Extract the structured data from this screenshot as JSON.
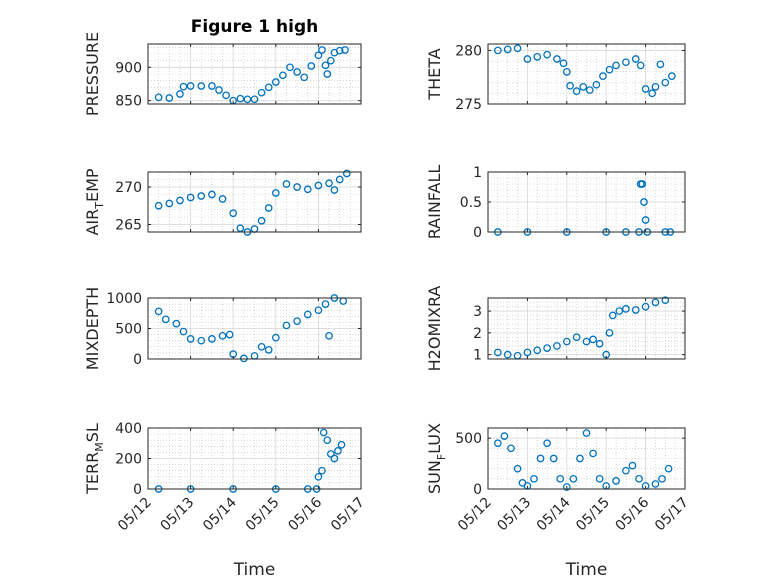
{
  "figure": {
    "title": "Figure 1 high",
    "xlabel": "Time"
  },
  "colors": {
    "marker": "#0072bd",
    "axis": "#262626",
    "grid": "#bfbfbf",
    "background": "#ffffff"
  },
  "chart_data": [
    {
      "type": "scatter",
      "title": "Figure 1 high",
      "ylabel": "PRESSURE",
      "ylim": [
        845,
        935
      ],
      "yticks": [
        850,
        900
      ],
      "xlim": [
        "05/12",
        "05/17"
      ],
      "grid": true,
      "minor_grid": true,
      "points": [
        [
          "05/12 06:00",
          855
        ],
        [
          "05/12 12:00",
          854
        ],
        [
          "05/12 18:00",
          860
        ],
        [
          "05/12 20:00",
          871
        ],
        [
          "05/13 00:00",
          872
        ],
        [
          "05/13 06:00",
          872
        ],
        [
          "05/13 12:00",
          872
        ],
        [
          "05/13 16:00",
          866
        ],
        [
          "05/13 20:00",
          858
        ],
        [
          "05/14 00:00",
          850
        ],
        [
          "05/14 04:00",
          853
        ],
        [
          "05/14 08:00",
          852
        ],
        [
          "05/14 12:00",
          852
        ],
        [
          "05/14 16:00",
          862
        ],
        [
          "05/14 20:00",
          870
        ],
        [
          "05/15 00:00",
          878
        ],
        [
          "05/15 04:00",
          888
        ],
        [
          "05/15 08:00",
          900
        ],
        [
          "05/15 12:00",
          893
        ],
        [
          "05/15 16:00",
          885
        ],
        [
          "05/15 20:00",
          902
        ],
        [
          "05/16 00:00",
          918
        ],
        [
          "05/16 02:00",
          926
        ],
        [
          "05/16 04:00",
          903
        ],
        [
          "05/16 05:00",
          890
        ],
        [
          "05/16 07:00",
          910
        ],
        [
          "05/16 09:00",
          922
        ],
        [
          "05/16 12:00",
          925
        ],
        [
          "05/16 15:00",
          926
        ]
      ]
    },
    {
      "type": "scatter",
      "ylabel": "THETA",
      "ylim": [
        275,
        280.6
      ],
      "yticks": [
        275,
        280
      ],
      "xlim": [
        "05/12",
        "05/17"
      ],
      "grid": true,
      "minor_grid": true,
      "points": [
        [
          "05/12 06:00",
          280.0
        ],
        [
          "05/12 12:00",
          280.1
        ],
        [
          "05/12 18:00",
          280.2
        ],
        [
          "05/13 00:00",
          279.2
        ],
        [
          "05/13 06:00",
          279.4
        ],
        [
          "05/13 12:00",
          279.6
        ],
        [
          "05/13 18:00",
          279.2
        ],
        [
          "05/13 22:00",
          278.8
        ],
        [
          "05/14 00:00",
          278.0
        ],
        [
          "05/14 02:00",
          276.7
        ],
        [
          "05/14 06:00",
          276.2
        ],
        [
          "05/14 10:00",
          276.6
        ],
        [
          "05/14 14:00",
          276.3
        ],
        [
          "05/14 18:00",
          276.8
        ],
        [
          "05/14 22:00",
          277.6
        ],
        [
          "05/15 02:00",
          278.2
        ],
        [
          "05/15 06:00",
          278.6
        ],
        [
          "05/15 12:00",
          278.9
        ],
        [
          "05/15 18:00",
          279.2
        ],
        [
          "05/15 21:00",
          278.6
        ],
        [
          "05/16 00:00",
          276.4
        ],
        [
          "05/16 04:00",
          276.0
        ],
        [
          "05/16 06:00",
          276.6
        ],
        [
          "05/16 09:00",
          278.7
        ],
        [
          "05/16 12:00",
          277.0
        ],
        [
          "05/16 16:00",
          277.6
        ]
      ]
    },
    {
      "type": "scatter",
      "ylabel": "AIR_TEMP",
      "ylim": [
        264,
        272
      ],
      "yticks": [
        265,
        270
      ],
      "xlim": [
        "05/12",
        "05/17"
      ],
      "grid": true,
      "minor_grid": true,
      "points": [
        [
          "05/12 06:00",
          267.5
        ],
        [
          "05/12 12:00",
          267.8
        ],
        [
          "05/12 18:00",
          268.2
        ],
        [
          "05/13 00:00",
          268.6
        ],
        [
          "05/13 06:00",
          268.8
        ],
        [
          "05/13 12:00",
          269.0
        ],
        [
          "05/13 18:00",
          268.4
        ],
        [
          "05/14 00:00",
          266.5
        ],
        [
          "05/14 04:00",
          264.5
        ],
        [
          "05/14 08:00",
          264.0
        ],
        [
          "05/14 12:00",
          264.4
        ],
        [
          "05/14 16:00",
          265.5
        ],
        [
          "05/14 20:00",
          267.2
        ],
        [
          "05/15 00:00",
          269.2
        ],
        [
          "05/15 06:00",
          270.4
        ],
        [
          "05/15 12:00",
          270.0
        ],
        [
          "05/15 18:00",
          269.7
        ],
        [
          "05/16 00:00",
          270.2
        ],
        [
          "05/16 06:00",
          270.5
        ],
        [
          "05/16 09:00",
          269.6
        ],
        [
          "05/16 12:00",
          271.0
        ],
        [
          "05/16 16:00",
          271.8
        ]
      ]
    },
    {
      "type": "scatter",
      "ylabel": "RAINFALL",
      "ylim": [
        0,
        1
      ],
      "yticks": [
        0,
        0.5,
        1
      ],
      "xlim": [
        "05/12",
        "05/17"
      ],
      "grid": true,
      "minor_grid": true,
      "points": [
        [
          "05/12 06:00",
          0
        ],
        [
          "05/13 00:00",
          0
        ],
        [
          "05/14 00:00",
          0
        ],
        [
          "05/15 00:00",
          0
        ],
        [
          "05/15 12:00",
          0
        ],
        [
          "05/15 20:00",
          0
        ],
        [
          "05/15 21:00",
          0.8
        ],
        [
          "05/15 22:00",
          0.8
        ],
        [
          "05/15 23:00",
          0.5
        ],
        [
          "05/16 00:00",
          0.2
        ],
        [
          "05/16 01:00",
          0
        ],
        [
          "05/16 12:00",
          0
        ],
        [
          "05/16 15:00",
          0
        ]
      ]
    },
    {
      "type": "scatter",
      "ylabel": "MIXDEPTH",
      "ylim": [
        0,
        1000
      ],
      "yticks": [
        0,
        500,
        1000
      ],
      "xlim": [
        "05/12",
        "05/17"
      ],
      "grid": true,
      "minor_grid": true,
      "points": [
        [
          "05/12 06:00",
          780
        ],
        [
          "05/12 10:00",
          650
        ],
        [
          "05/12 16:00",
          580
        ],
        [
          "05/12 20:00",
          450
        ],
        [
          "05/13 00:00",
          330
        ],
        [
          "05/13 06:00",
          300
        ],
        [
          "05/13 12:00",
          330
        ],
        [
          "05/13 18:00",
          380
        ],
        [
          "05/13 22:00",
          400
        ],
        [
          "05/14 00:00",
          80
        ],
        [
          "05/14 06:00",
          10
        ],
        [
          "05/14 12:00",
          50
        ],
        [
          "05/14 16:00",
          200
        ],
        [
          "05/14 20:00",
          150
        ],
        [
          "05/15 00:00",
          350
        ],
        [
          "05/15 06:00",
          550
        ],
        [
          "05/15 12:00",
          620
        ],
        [
          "05/15 18:00",
          730
        ],
        [
          "05/16 00:00",
          800
        ],
        [
          "05/16 04:00",
          900
        ],
        [
          "05/16 06:00",
          380
        ],
        [
          "05/16 09:00",
          1000
        ],
        [
          "05/16 14:00",
          950
        ]
      ]
    },
    {
      "type": "scatter",
      "ylabel": "H2OMIXRA",
      "ylim": [
        0.8,
        3.6
      ],
      "yticks": [
        1,
        2,
        3
      ],
      "xlim": [
        "05/12",
        "05/17"
      ],
      "grid": true,
      "minor_grid": true,
      "points": [
        [
          "05/12 06:00",
          1.1
        ],
        [
          "05/12 12:00",
          1.0
        ],
        [
          "05/12 18:00",
          0.95
        ],
        [
          "05/13 00:00",
          1.1
        ],
        [
          "05/13 06:00",
          1.2
        ],
        [
          "05/13 12:00",
          1.3
        ],
        [
          "05/13 18:00",
          1.4
        ],
        [
          "05/14 00:00",
          1.6
        ],
        [
          "05/14 06:00",
          1.8
        ],
        [
          "05/14 12:00",
          1.6
        ],
        [
          "05/14 16:00",
          1.7
        ],
        [
          "05/14 20:00",
          1.5
        ],
        [
          "05/15 00:00",
          1.0
        ],
        [
          "05/15 02:00",
          2.0
        ],
        [
          "05/15 04:00",
          2.8
        ],
        [
          "05/15 08:00",
          3.0
        ],
        [
          "05/15 12:00",
          3.1
        ],
        [
          "05/15 18:00",
          3.05
        ],
        [
          "05/16 00:00",
          3.2
        ],
        [
          "05/16 06:00",
          3.4
        ],
        [
          "05/16 12:00",
          3.5
        ]
      ]
    },
    {
      "type": "scatter",
      "ylabel": "TERR_MSL",
      "ylim": [
        0,
        400
      ],
      "yticks": [
        0,
        200,
        400
      ],
      "xlim": [
        "05/12",
        "05/17"
      ],
      "grid": true,
      "minor_grid": true,
      "points": [
        [
          "05/12 06:00",
          0
        ],
        [
          "05/13 00:00",
          0
        ],
        [
          "05/14 00:00",
          0
        ],
        [
          "05/15 00:00",
          0
        ],
        [
          "05/15 18:00",
          0
        ],
        [
          "05/15 23:00",
          0
        ],
        [
          "05/16 00:00",
          80
        ],
        [
          "05/16 02:00",
          120
        ],
        [
          "05/16 03:00",
          370
        ],
        [
          "05/16 05:00",
          320
        ],
        [
          "05/16 07:00",
          230
        ],
        [
          "05/16 09:00",
          200
        ],
        [
          "05/16 11:00",
          250
        ],
        [
          "05/16 13:00",
          290
        ]
      ]
    },
    {
      "type": "scatter",
      "ylabel": "SUN_FLUX",
      "ylim": [
        0,
        600
      ],
      "yticks": [
        0,
        500
      ],
      "xlim": [
        "05/12",
        "05/17"
      ],
      "grid": true,
      "minor_grid": true,
      "points": [
        [
          "05/12 06:00",
          450
        ],
        [
          "05/12 10:00",
          520
        ],
        [
          "05/12 14:00",
          400
        ],
        [
          "05/12 18:00",
          200
        ],
        [
          "05/12 21:00",
          60
        ],
        [
          "05/13 00:00",
          30
        ],
        [
          "05/13 04:00",
          100
        ],
        [
          "05/13 08:00",
          300
        ],
        [
          "05/13 12:00",
          450
        ],
        [
          "05/13 16:00",
          300
        ],
        [
          "05/13 20:00",
          100
        ],
        [
          "05/14 00:00",
          20
        ],
        [
          "05/14 04:00",
          100
        ],
        [
          "05/14 08:00",
          300
        ],
        [
          "05/14 12:00",
          550
        ],
        [
          "05/14 16:00",
          350
        ],
        [
          "05/14 20:00",
          100
        ],
        [
          "05/15 00:00",
          30
        ],
        [
          "05/15 06:00",
          80
        ],
        [
          "05/15 12:00",
          180
        ],
        [
          "05/15 16:00",
          230
        ],
        [
          "05/15 20:00",
          100
        ],
        [
          "05/16 00:00",
          30
        ],
        [
          "05/16 06:00",
          50
        ],
        [
          "05/16 10:00",
          100
        ],
        [
          "05/16 14:00",
          200
        ]
      ]
    }
  ],
  "xticks": [
    "05/12",
    "05/13",
    "05/14",
    "05/15",
    "05/16",
    "05/17"
  ]
}
